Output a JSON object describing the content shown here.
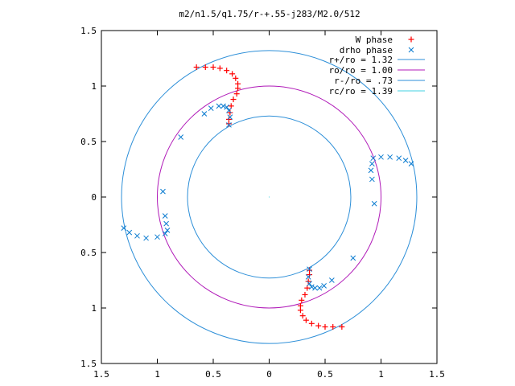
{
  "chart_data": {
    "type": "scatter",
    "title": "m2/n1.5/q1.75/r-+.55-j283/M2.0/512",
    "xlabel": "",
    "ylabel": "",
    "xlim": [
      -1.5,
      1.5
    ],
    "ylim": [
      -1.5,
      1.5
    ],
    "x_tick_labels": [
      "1.5",
      "1",
      "0.5",
      "0",
      "0.5",
      "1",
      "1.5"
    ],
    "y_tick_labels": [
      "1.5",
      "1",
      "0.5",
      "0",
      "0.5",
      "1",
      "1.5"
    ],
    "grid": false,
    "legend_position": "top-right",
    "legend": [
      {
        "label": "W phase",
        "color": "#ff0000",
        "marker": "plus"
      },
      {
        "label": "drho phase",
        "color": "#0a7bd0",
        "marker": "x"
      },
      {
        "label": "r+/ro = 1.32",
        "color": "#2d8fd8",
        "marker": "line"
      },
      {
        "label": "ro/ro = 1.00",
        "color": "#b01ab8",
        "marker": "line"
      },
      {
        "label": "r-/ro = .73",
        "color": "#2d8fd8",
        "marker": "line"
      },
      {
        "label": "rc/ro = 1.39",
        "color": "#40d0e0",
        "marker": "line"
      }
    ],
    "circles": [
      {
        "name": "r+/ro",
        "radius": 1.32,
        "color": "#2d8fd8"
      },
      {
        "name": "ro/ro",
        "radius": 1.0,
        "color": "#b01ab8"
      },
      {
        "name": "r-/ro",
        "radius": 0.73,
        "color": "#2d8fd8"
      }
    ],
    "series": [
      {
        "name": "W phase",
        "color": "#ff0000",
        "points": [
          [
            -0.65,
            1.17
          ],
          [
            -0.57,
            1.17
          ],
          [
            -0.5,
            1.17
          ],
          [
            -0.44,
            1.16
          ],
          [
            -0.38,
            1.14
          ],
          [
            -0.33,
            1.11
          ],
          [
            -0.3,
            1.07
          ],
          [
            -0.28,
            1.02
          ],
          [
            -0.28,
            0.98
          ],
          [
            -0.29,
            0.93
          ],
          [
            -0.32,
            0.88
          ],
          [
            -0.34,
            0.82
          ],
          [
            -0.35,
            0.76
          ],
          [
            -0.36,
            0.7
          ],
          [
            -0.36,
            0.66
          ],
          [
            0.65,
            -1.17
          ],
          [
            0.57,
            -1.17
          ],
          [
            0.5,
            -1.17
          ],
          [
            0.44,
            -1.16
          ],
          [
            0.38,
            -1.14
          ],
          [
            0.33,
            -1.11
          ],
          [
            0.3,
            -1.07
          ],
          [
            0.28,
            -1.02
          ],
          [
            0.28,
            -0.98
          ],
          [
            0.29,
            -0.93
          ],
          [
            0.32,
            -0.88
          ],
          [
            0.34,
            -0.82
          ],
          [
            0.35,
            -0.76
          ],
          [
            0.36,
            -0.7
          ],
          [
            0.36,
            -0.66
          ]
        ]
      },
      {
        "name": "drho phase",
        "color": "#0a7bd0",
        "points": [
          [
            -0.36,
            0.65
          ],
          [
            -0.35,
            0.72
          ],
          [
            -0.36,
            0.78
          ],
          [
            -0.38,
            0.81
          ],
          [
            -0.41,
            0.82
          ],
          [
            -0.45,
            0.82
          ],
          [
            -0.52,
            0.8
          ],
          [
            -0.58,
            0.75
          ],
          [
            -0.79,
            0.54
          ],
          [
            -0.95,
            0.05
          ],
          [
            -0.93,
            -0.17
          ],
          [
            -0.92,
            -0.24
          ],
          [
            -0.91,
            -0.3
          ],
          [
            -0.93,
            -0.33
          ],
          [
            -1.0,
            -0.36
          ],
          [
            -1.1,
            -0.37
          ],
          [
            -1.18,
            -0.35
          ],
          [
            -1.25,
            -0.32
          ],
          [
            -1.3,
            -0.28
          ],
          [
            0.93,
            0.35
          ],
          [
            1.0,
            0.36
          ],
          [
            1.08,
            0.36
          ],
          [
            1.16,
            0.35
          ],
          [
            1.22,
            0.33
          ],
          [
            1.27,
            0.3
          ],
          [
            0.92,
            0.3
          ],
          [
            0.91,
            0.24
          ],
          [
            0.92,
            0.16
          ],
          [
            0.94,
            -0.06
          ],
          [
            0.36,
            -0.65
          ],
          [
            0.35,
            -0.72
          ],
          [
            0.36,
            -0.78
          ],
          [
            0.38,
            -0.81
          ],
          [
            0.41,
            -0.82
          ],
          [
            0.45,
            -0.82
          ],
          [
            0.49,
            -0.8
          ],
          [
            0.56,
            -0.75
          ],
          [
            0.75,
            -0.55
          ]
        ]
      }
    ]
  }
}
